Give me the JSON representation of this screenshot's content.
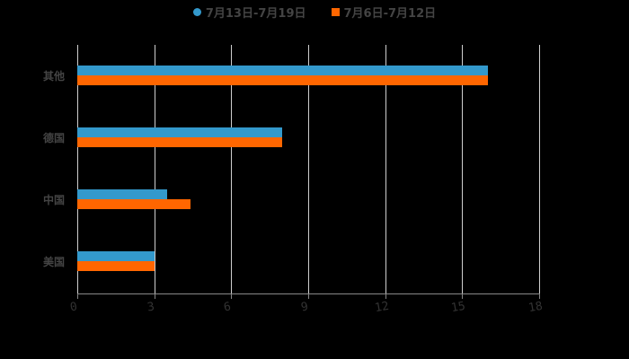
{
  "chart_data": {
    "type": "bar",
    "orientation": "horizontal",
    "categories": [
      "其他",
      "德国",
      "中国",
      "美国"
    ],
    "series": [
      {
        "name": "7月13日-7月19日",
        "color": "#3399cc",
        "values": [
          16,
          8,
          3.5,
          3
        ]
      },
      {
        "name": "7月6日-7月12日",
        "color": "#ff6600",
        "values": [
          16,
          8,
          4.4,
          3
        ]
      }
    ],
    "xticks": [
      "0",
      "3",
      "6",
      "9",
      "12",
      "15",
      "18"
    ],
    "xlim": [
      0,
      18
    ],
    "grid": true,
    "legend_position": "top",
    "title": "",
    "xlabel": "",
    "ylabel": ""
  },
  "legend": {
    "item1": "7月13日-7月19日",
    "item2": "7月6日-7月12日"
  }
}
